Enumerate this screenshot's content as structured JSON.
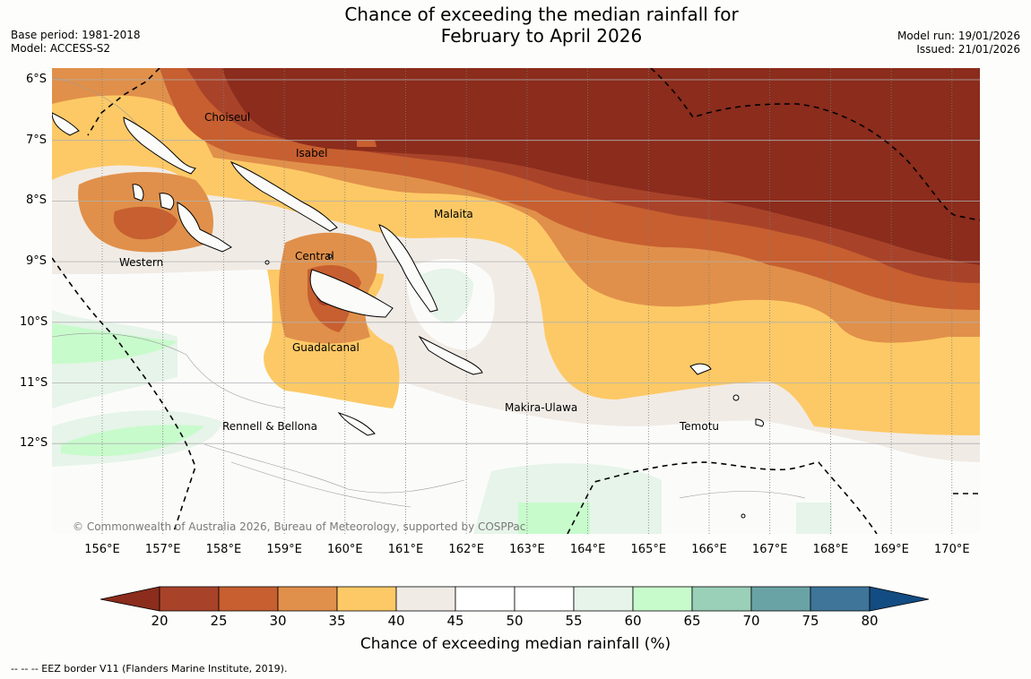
{
  "title": {
    "line1": "Chance of exceeding the median rainfall for",
    "line2": "February to April 2026"
  },
  "meta_left": {
    "base_period": "Base period: 1981-2018",
    "model": "Model: ACCESS-S2"
  },
  "meta_right": {
    "model_run": "Model run: 19/01/2026",
    "issued": "Issued: 21/01/2026"
  },
  "axes": {
    "lat_labels": [
      "6°S",
      "7°S",
      "8°S",
      "9°S",
      "10°S",
      "11°S",
      "12°S"
    ],
    "lon_labels": [
      "156°E",
      "157°E",
      "158°E",
      "159°E",
      "160°E",
      "161°E",
      "162°E",
      "163°E",
      "164°E",
      "165°E",
      "166°E",
      "167°E",
      "168°E",
      "169°E",
      "170°E"
    ]
  },
  "regions": [
    "Choiseul",
    "Isabel",
    "Malaita",
    "Central",
    "Western",
    "Guadalcanal",
    "Makira-Ulawa",
    "Rennell & Bellona",
    "Temotu"
  ],
  "copyright": "© Commonwealth of Australia 2026, Bureau of Meteorology, supported by COSPPac",
  "colorbar": {
    "ticks": [
      "20",
      "25",
      "30",
      "35",
      "40",
      "45",
      "50",
      "55",
      "60",
      "65",
      "70",
      "75",
      "80"
    ],
    "colors": [
      "#8b2c1c",
      "#a8432a",
      "#c75f30",
      "#e0904a",
      "#fdc966",
      "#f1ebe5",
      "#ffffff",
      "#ffffff",
      "#e6f4e9",
      "#c8fbcc",
      "#9acfb8",
      "#6aa3a6",
      "#3f7599",
      "#134c82"
    ],
    "label": "Chance of exceeding median rainfall (%)"
  },
  "footnote": "--  --  -- EEZ border V11 (Flanders Marine Institute, 2019)."
}
